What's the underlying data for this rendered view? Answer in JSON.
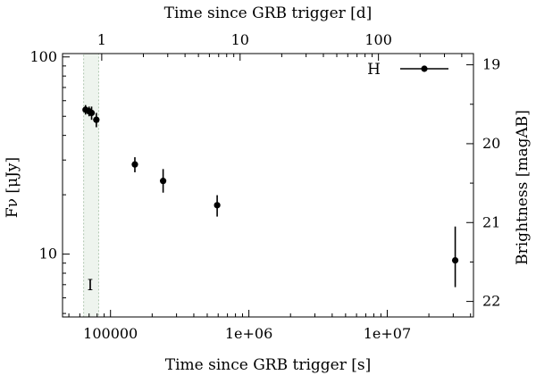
{
  "chart_data": {
    "type": "scatter",
    "title": "",
    "xlabel": "Time since GRB trigger [s]",
    "x2label": "Time since GRB trigger [d]",
    "ylabel_left": "Fν [μJy]",
    "ylabel_right": "Brightness [magAB]",
    "xscale": "log",
    "yscale": "log",
    "xlim": [
      45000,
      42000000
    ],
    "ylim": [
      4.8,
      104
    ],
    "x_ticks": [
      {
        "value": 100000,
        "label": "100000"
      },
      {
        "value": 1000000,
        "label": "1e+06"
      },
      {
        "value": 10000000,
        "label": "1e+07"
      }
    ],
    "x2_ticks": [
      {
        "value_days": 1,
        "label": "1"
      },
      {
        "value_days": 10,
        "label": "10"
      },
      {
        "value_days": 100,
        "label": "100"
      }
    ],
    "y_ticks": [
      {
        "value": 10,
        "label": "10"
      },
      {
        "value": 100,
        "label": "100"
      }
    ],
    "y2_ticks": [
      {
        "mag": 19,
        "label": "19"
      },
      {
        "mag": 20,
        "label": "20"
      },
      {
        "mag": 21,
        "label": "21"
      },
      {
        "mag": 22,
        "label": "22"
      }
    ],
    "shaded_band": {
      "x_range": [
        64000,
        82000
      ],
      "label": "I"
    },
    "series": [
      {
        "name": "H",
        "points": [
          {
            "x": 66000,
            "y": 54.0,
            "yerr_lo": 3.0,
            "yerr_hi": 3.0
          },
          {
            "x": 70000,
            "y": 53.0,
            "yerr_lo": 3.0,
            "yerr_hi": 3.0
          },
          {
            "x": 73000,
            "y": 52.0,
            "yerr_lo": 4.0,
            "yerr_hi": 4.0
          },
          {
            "x": 79000,
            "y": 48.0,
            "yerr_lo": 4.0,
            "yerr_hi": 4.0
          },
          {
            "x": 150000,
            "y": 28.5,
            "yerr_lo": 2.5,
            "yerr_hi": 2.5
          },
          {
            "x": 240000,
            "y": 23.5,
            "yerr_lo": 3.0,
            "yerr_hi": 3.5
          },
          {
            "x": 590000,
            "y": 17.7,
            "yerr_lo": 2.2,
            "yerr_hi": 2.2
          },
          {
            "x": 31000000,
            "y": 9.3,
            "yerr_lo": 2.5,
            "yerr_hi": 4.5
          }
        ]
      }
    ],
    "legend": {
      "position": "top-right",
      "label": "H"
    },
    "grid": false
  }
}
